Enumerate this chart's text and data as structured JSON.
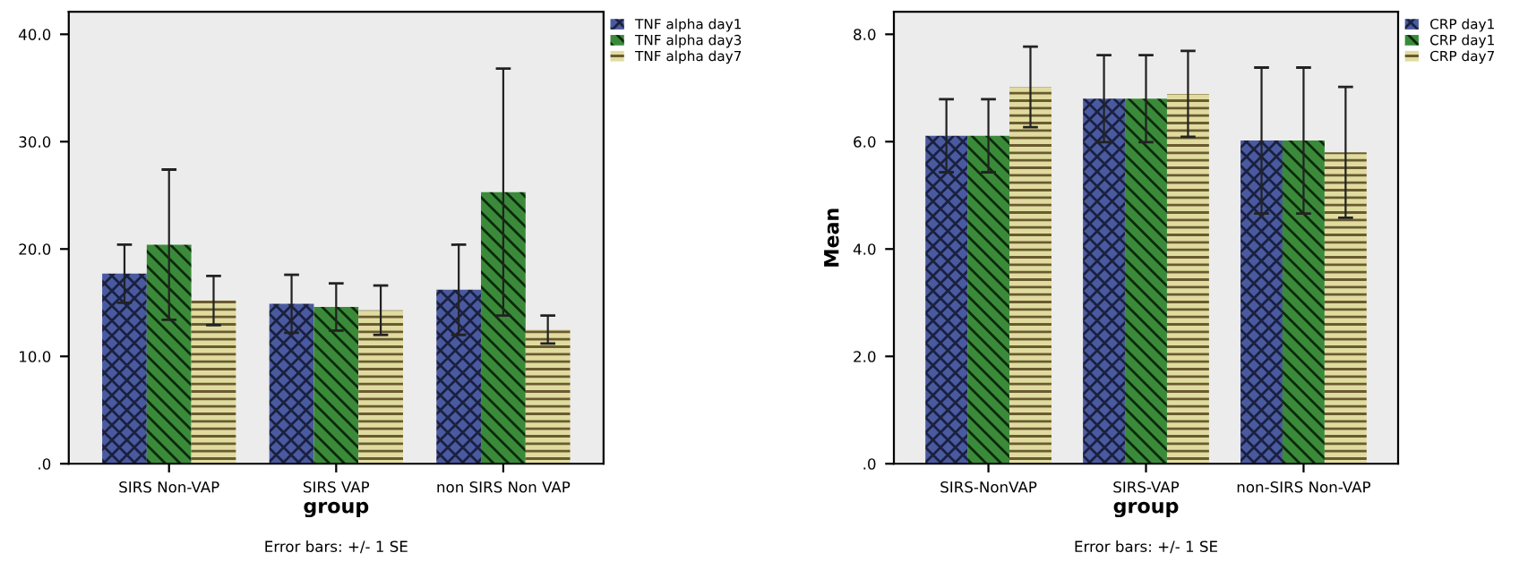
{
  "chart_data": [
    {
      "type": "bar",
      "xlabel": "group",
      "categories": [
        "SIRS Non-VAP",
        "SIRS VAP",
        "non SIRS Non VAP"
      ],
      "series": [
        {
          "name": "TNF alpha day1",
          "color": "#4a5aa0",
          "values": [
            17.7,
            14.9,
            16.2
          ],
          "errors": [
            2.7,
            2.7,
            4.2
          ]
        },
        {
          "name": "TNF alpha day3",
          "color": "#3a8a3a",
          "values": [
            20.4,
            14.6,
            25.3
          ],
          "errors": [
            7.0,
            2.2,
            11.5
          ]
        },
        {
          "name": "TNF alpha day7",
          "color": "#e0dca0",
          "values": [
            15.2,
            14.3,
            12.5
          ],
          "errors": [
            2.3,
            2.3,
            1.3
          ]
        }
      ],
      "ylim": [
        0,
        42.1
      ],
      "yticks": [
        {
          "value": 0,
          "label": ".0"
        },
        {
          "value": 10,
          "label": "10.0"
        },
        {
          "value": 20,
          "label": "20.0"
        },
        {
          "value": 30,
          "label": "30.0"
        },
        {
          "value": 40,
          "label": "40.0"
        }
      ],
      "grid": false,
      "legend": "top right",
      "annotations": [
        "Error bars: +/- 1 SE"
      ]
    },
    {
      "type": "bar",
      "xlabel": "group",
      "ylabel": "Mean",
      "categories": [
        "SIRS-NonVAP",
        "SIRS-VAP",
        "non-SIRS Non-VAP"
      ],
      "series": [
        {
          "name": "CRP day1",
          "color": "#4a5aa0",
          "values": [
            6.11,
            6.8,
            6.02
          ],
          "errors": [
            0.68,
            0.81,
            1.36
          ]
        },
        {
          "name": "CRP day1",
          "color": "#3a8a3a",
          "values": [
            6.11,
            6.8,
            6.02
          ],
          "errors": [
            0.68,
            0.81,
            1.36
          ]
        },
        {
          "name": "CRP day7",
          "color": "#e0dca0",
          "values": [
            7.02,
            6.89,
            5.8
          ],
          "errors": [
            0.75,
            0.8,
            1.22
          ]
        }
      ],
      "ylim": [
        0,
        8.42
      ],
      "yticks": [
        {
          "value": 0,
          "label": ".0"
        },
        {
          "value": 2,
          "label": "2.0"
        },
        {
          "value": 4,
          "label": "4.0"
        },
        {
          "value": 6,
          "label": "6.0"
        },
        {
          "value": 8,
          "label": "8.0"
        }
      ],
      "grid": false,
      "legend": "top right",
      "annotations": [
        "Error bars: +/- 1 SE"
      ]
    }
  ]
}
